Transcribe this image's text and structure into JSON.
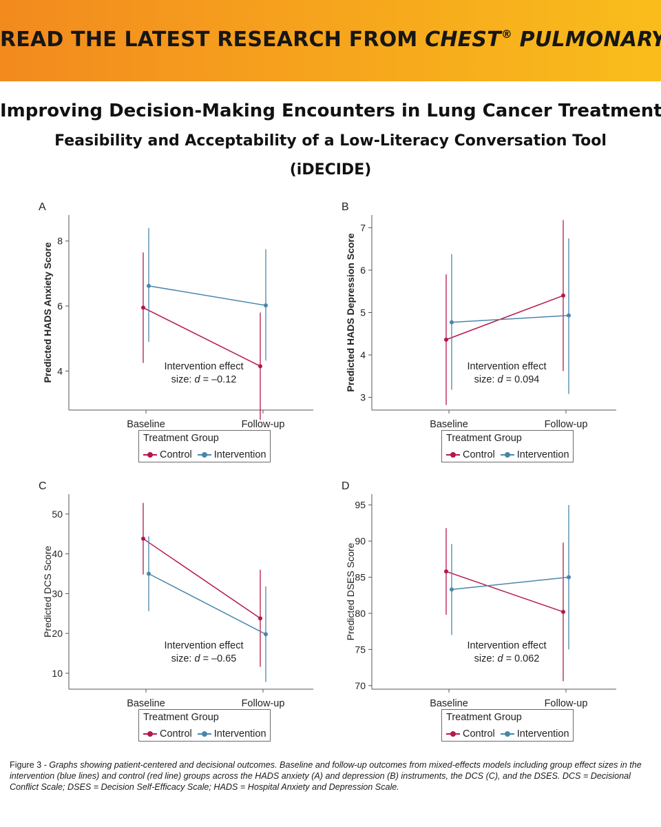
{
  "banner": {
    "prefix": "READ THE LATEST RESEARCH FROM ",
    "journal": "CHEST",
    "reg": "®",
    "journal_suffix": " PULMONARY"
  },
  "titles": {
    "main": "Improving Decision-Making Encounters in Lung Cancer Treatment",
    "sub1": "Feasibility and Acceptability of a Low-Literacy Conversation Tool",
    "sub2": "(iDECIDE)"
  },
  "colors": {
    "control": "#b5174b",
    "intervention": "#4a86ab",
    "axis": "#555555",
    "text": "#222222"
  },
  "legend": {
    "title": "Treatment Group",
    "control": "Control",
    "intervention": "Intervention"
  },
  "chart_data": [
    {
      "type": "line",
      "panel": "A",
      "ylabel": "Predicted HADS Anxiety Score",
      "categories": [
        "Baseline",
        "Follow-up"
      ],
      "ylim": [
        2.8,
        8.8
      ],
      "yticks": [
        4,
        6,
        8
      ],
      "annotation": {
        "line1": "Intervention effect",
        "line2_prefix": "size: ",
        "d": "d",
        "line2_suffix": " = –0.12"
      },
      "series": [
        {
          "name": "Control",
          "values": [
            5.95,
            4.15
          ],
          "lower": [
            4.25,
            2.5
          ],
          "upper": [
            7.65,
            5.8
          ]
        },
        {
          "name": "Intervention",
          "values": [
            6.62,
            6.02
          ],
          "lower": [
            4.9,
            4.32
          ],
          "upper": [
            8.4,
            7.75
          ]
        }
      ]
    },
    {
      "type": "line",
      "panel": "B",
      "ylabel": "Predicted HADS Depression Score",
      "categories": [
        "Baseline",
        "Follow-up"
      ],
      "ylim": [
        2.7,
        7.3
      ],
      "yticks": [
        3,
        4,
        5,
        6,
        7
      ],
      "annotation": {
        "line1": "Intervention effect",
        "line2_prefix": "size: ",
        "d": "d",
        "line2_suffix": " = 0.094"
      },
      "series": [
        {
          "name": "Control",
          "values": [
            4.36,
            5.4
          ],
          "lower": [
            2.82,
            3.62
          ],
          "upper": [
            5.9,
            7.18
          ]
        },
        {
          "name": "Intervention",
          "values": [
            4.77,
            4.93
          ],
          "lower": [
            3.18,
            3.08
          ],
          "upper": [
            6.38,
            6.75
          ]
        }
      ]
    },
    {
      "type": "line",
      "panel": "C",
      "ylabel": "Predicted DCS Score",
      "categories": [
        "Baseline",
        "Follow-up"
      ],
      "ylim": [
        6,
        55
      ],
      "yticks": [
        10,
        20,
        30,
        40,
        50
      ],
      "annotation": {
        "line1": "Intervention effect",
        "line2_prefix": "size: ",
        "d": "d",
        "line2_suffix": " = –0.65"
      },
      "series": [
        {
          "name": "Control",
          "values": [
            43.8,
            23.8
          ],
          "lower": [
            34.8,
            11.6
          ],
          "upper": [
            52.8,
            36.0
          ]
        },
        {
          "name": "Intervention",
          "values": [
            35.0,
            19.8
          ],
          "lower": [
            25.6,
            7.8
          ],
          "upper": [
            44.4,
            31.8
          ]
        }
      ]
    },
    {
      "type": "line",
      "panel": "D",
      "ylabel": "Predicted DSES Score",
      "categories": [
        "Baseline",
        "Follow-up"
      ],
      "ylim": [
        69.5,
        96.5
      ],
      "yticks": [
        70,
        75,
        80,
        85,
        90,
        95
      ],
      "annotation": {
        "line1": "Intervention effect",
        "line2_prefix": "size: ",
        "d": "d",
        "line2_suffix": " = 0.062"
      },
      "series": [
        {
          "name": "Control",
          "values": [
            85.8,
            80.2
          ],
          "lower": [
            79.8,
            70.6
          ],
          "upper": [
            91.8,
            89.8
          ]
        },
        {
          "name": "Intervention",
          "values": [
            83.3,
            85.0
          ],
          "lower": [
            77.0,
            75.0
          ],
          "upper": [
            89.6,
            95.0
          ]
        }
      ]
    }
  ],
  "caption": {
    "prefix": "Figure 3 -  ",
    "text": "Graphs showing patient-centered and decisional outcomes. Baseline and follow-up outcomes from mixed-effects models including group effect sizes in the intervention (blue lines) and control (red line) groups across the HADS anxiety (A) and depression (B) instruments, the DCS (C), and the DSES. DCS = Decisional Conflict Scale; DSES = Decision Self-Efficacy Scale; HADS = Hospital Anxiety and Depression Scale."
  }
}
